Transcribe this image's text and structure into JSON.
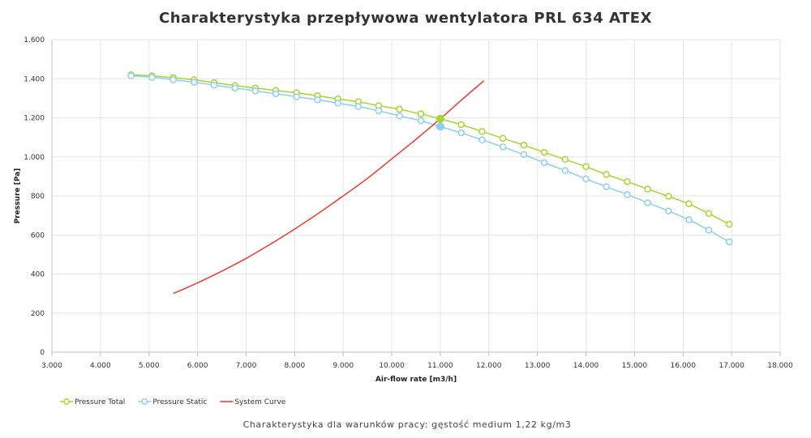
{
  "colors": {
    "total": "#a6d631",
    "static": "#8dcff2",
    "system": "#ee3b32",
    "grid": "#e6e6e6",
    "axis": "#c0c0c0"
  },
  "chart_data": {
    "type": "line",
    "title": "Charakterystyka przepływowa wentylatora PRL 634 ATEX",
    "subtitle": "Charakterystyka dla warunków pracy: gęstość medium 1,22 kg/m3",
    "xlabel": "Air-flow rate [m3/h]",
    "ylabel": "Pressure [Pa]",
    "xlim": [
      3000,
      18000
    ],
    "ylim": [
      0,
      1600
    ],
    "xticks": [
      3000,
      4000,
      5000,
      6000,
      7000,
      8000,
      9000,
      10000,
      11000,
      12000,
      13000,
      14000,
      15000,
      16000,
      17000,
      18000
    ],
    "yticks": [
      0,
      200,
      400,
      600,
      800,
      1000,
      1200,
      1400,
      1600
    ],
    "xtick_labels": [
      "3.000",
      "4.000",
      "5.000",
      "6.000",
      "7.000",
      "8.000",
      "9.000",
      "10.000",
      "11.000",
      "12.000",
      "13.000",
      "14.000",
      "15.000",
      "16.000",
      "17.000",
      "18.000"
    ],
    "ytick_labels": [
      "0",
      "200",
      "400",
      "600",
      "800",
      "1.000",
      "1.200",
      "1.400",
      "1.600"
    ],
    "grid": true,
    "legend_position": "bottom-left",
    "series": [
      {
        "name": "Pressure Total",
        "color_key": "total",
        "marker": "circle-open",
        "x": [
          4630,
          5060,
          5500,
          5930,
          6340,
          6770,
          7190,
          7610,
          8040,
          8470,
          8890,
          9310,
          9730,
          10160,
          10600,
          11000,
          11430,
          11860,
          12290,
          12720,
          13140,
          13570,
          14000,
          14420,
          14850,
          15270,
          15700,
          16120,
          16530,
          16950
        ],
        "y": [
          1420,
          1415,
          1405,
          1395,
          1380,
          1365,
          1352,
          1340,
          1328,
          1313,
          1297,
          1282,
          1262,
          1244,
          1220,
          1195,
          1165,
          1130,
          1095,
          1060,
          1023,
          987,
          950,
          910,
          873,
          835,
          798,
          760,
          710,
          655
        ]
      },
      {
        "name": "Pressure Static",
        "color_key": "static",
        "marker": "circle-open",
        "x": [
          4630,
          5060,
          5500,
          5930,
          6340,
          6770,
          7190,
          7610,
          8040,
          8470,
          8890,
          9310,
          9730,
          10160,
          10600,
          11000,
          11430,
          11860,
          12290,
          12720,
          13140,
          13570,
          14000,
          14420,
          14850,
          15270,
          15700,
          16120,
          16530,
          16950
        ],
        "y": [
          1415,
          1408,
          1395,
          1382,
          1367,
          1352,
          1338,
          1323,
          1308,
          1292,
          1275,
          1258,
          1236,
          1210,
          1185,
          1155,
          1123,
          1087,
          1051,
          1012,
          970,
          930,
          887,
          847,
          807,
          765,
          723,
          678,
          625,
          565
        ]
      },
      {
        "name": "System Curve",
        "color_key": "system",
        "marker": "none",
        "x": [
          5500,
          6000,
          6500,
          7000,
          7500,
          8000,
          8500,
          9000,
          9500,
          10000,
          10500,
          11000,
          11500,
          11900
        ],
        "y": [
          300,
          355,
          415,
          480,
          553,
          630,
          713,
          800,
          890,
          990,
          1090,
          1195,
          1305,
          1390
        ]
      }
    ],
    "operating_point": {
      "x": 11000,
      "total": 1195,
      "static": 1155
    }
  }
}
